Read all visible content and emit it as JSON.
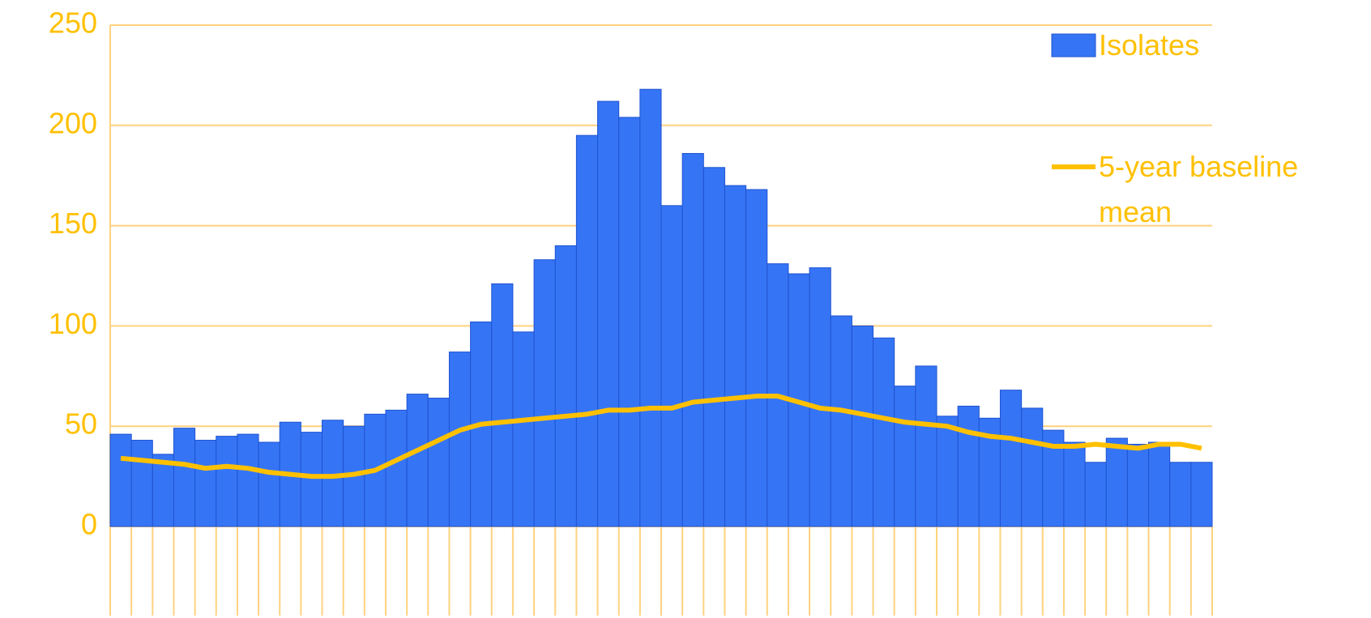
{
  "chart_data": {
    "type": "bar",
    "categories": [
      null,
      null,
      null,
      null,
      null,
      null,
      null,
      null,
      null,
      null,
      null,
      null,
      null,
      null,
      null,
      null,
      null,
      null,
      null,
      null,
      null,
      null,
      null,
      null,
      null,
      null,
      null,
      null,
      null,
      null,
      null,
      null,
      null,
      null,
      null,
      null,
      null,
      null,
      null,
      null,
      null,
      null,
      null,
      null,
      null,
      null,
      null,
      null,
      null,
      null,
      null,
      null
    ],
    "series": [
      {
        "name": "Isolates",
        "type": "bar",
        "color": "#3575f5",
        "values": [
          46,
          43,
          36,
          49,
          43,
          45,
          46,
          42,
          52,
          47,
          53,
          50,
          56,
          58,
          66,
          64,
          87,
          102,
          121,
          97,
          133,
          140,
          195,
          212,
          204,
          218,
          160,
          186,
          179,
          170,
          168,
          131,
          126,
          129,
          105,
          100,
          94,
          70,
          80,
          55,
          60,
          54,
          68,
          59,
          48,
          42,
          32,
          44,
          41,
          42,
          32,
          32
        ]
      },
      {
        "name": "5-year baseline mean",
        "type": "line",
        "color": "#ffc000",
        "values": [
          34,
          33,
          32,
          31,
          29,
          30,
          29,
          27,
          26,
          25,
          25,
          26,
          28,
          33,
          38,
          43,
          48,
          51,
          52,
          53,
          54,
          55,
          56,
          58,
          58,
          59,
          59,
          62,
          63,
          64,
          65,
          65,
          62,
          59,
          58,
          56,
          54,
          52,
          51,
          50,
          47,
          45,
          44,
          42,
          40,
          40,
          41,
          40,
          39,
          41,
          41,
          39
        ]
      }
    ],
    "ylim": [
      0,
      250
    ],
    "yticks": [
      0,
      50,
      100,
      150,
      200,
      250
    ],
    "grid": true,
    "legend": "right"
  }
}
